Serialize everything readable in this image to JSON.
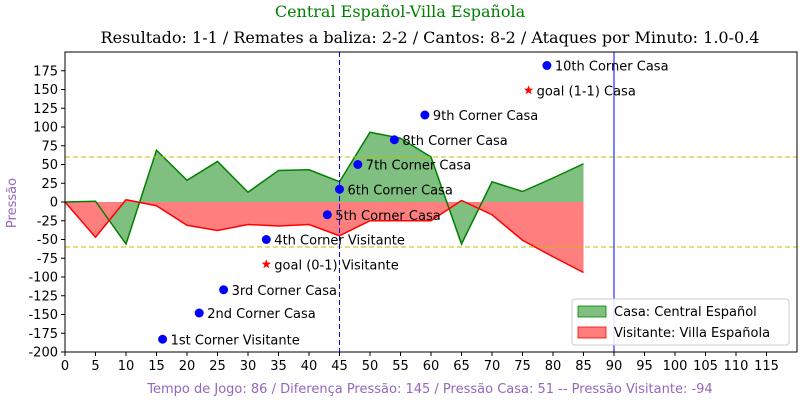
{
  "top_title": "Central Español-Villa Española",
  "chart_data": {
    "type": "area",
    "title": "Resultado: 1-1 / Remates a baliza: 2-2 / Cantos: 8-2 / Ataques por Minuto: 1.0-0.4",
    "xlabel": "Tempo de Jogo: 86 / Diferença Pressão: 145 / Pressão Casa: 51 -- Pressão Visitante: -94",
    "ylabel": "Pressão",
    "xlim": [
      0,
      120
    ],
    "ylim": [
      -200,
      200
    ],
    "x_ticks": [
      0,
      5,
      10,
      15,
      20,
      25,
      30,
      35,
      40,
      45,
      50,
      55,
      60,
      65,
      70,
      75,
      80,
      85,
      90,
      95,
      100,
      105,
      110,
      115
    ],
    "y_ticks": [
      -200,
      -175,
      -150,
      -125,
      -100,
      -75,
      -50,
      -25,
      0,
      25,
      50,
      75,
      100,
      125,
      150,
      175
    ],
    "series": [
      {
        "name": "Casa: Central Español",
        "color": "#008000",
        "fill": "#7fbf7f",
        "x": [
          0,
          5,
          10,
          15,
          20,
          25,
          30,
          35,
          40,
          45,
          50,
          55,
          60,
          65,
          70,
          75,
          80,
          85
        ],
        "values": [
          0,
          1,
          -56,
          69,
          29,
          54,
          13,
          42,
          43,
          27,
          93,
          85,
          60,
          -56,
          27,
          14,
          32,
          51
        ]
      },
      {
        "name": "Visitante: Villa Española",
        "color": "#ff0000",
        "fill": "#ff7f7f",
        "x": [
          0,
          5,
          10,
          15,
          20,
          25,
          30,
          35,
          40,
          45,
          50,
          55,
          60,
          65,
          70,
          75,
          80,
          85
        ],
        "values": [
          0,
          -47,
          3,
          -5,
          -31,
          -38,
          -30,
          -32,
          -30,
          -45,
          -25,
          -25,
          -25,
          2,
          -17,
          -51,
          -73,
          -94
        ]
      }
    ],
    "hlines": [
      {
        "y": 60,
        "color": "#bfbf00",
        "style": "dashed"
      },
      {
        "y": -60,
        "color": "#bfbf00",
        "style": "dashed"
      }
    ],
    "vlines": [
      {
        "x": 45,
        "color": "#0000ff",
        "style": "dashed"
      },
      {
        "x": 90,
        "color": "#0000ff",
        "style": "solid"
      }
    ],
    "annotations": [
      {
        "x": 16,
        "y": -183,
        "marker": "circle",
        "color": "#0000ff",
        "label": "1st Corner Visitante"
      },
      {
        "x": 22,
        "y": -148,
        "marker": "circle",
        "color": "#0000ff",
        "label": "2nd Corner Casa"
      },
      {
        "x": 26,
        "y": -117,
        "marker": "circle",
        "color": "#0000ff",
        "label": "3rd Corner Casa"
      },
      {
        "x": 33,
        "y": -50,
        "marker": "circle",
        "color": "#0000ff",
        "label": "4th Corner Visitante"
      },
      {
        "x": 43,
        "y": -17,
        "marker": "circle",
        "color": "#0000ff",
        "label": "5th Corner Casa"
      },
      {
        "x": 45,
        "y": 17,
        "marker": "circle",
        "color": "#0000ff",
        "label": "6th Corner Casa"
      },
      {
        "x": 48,
        "y": 50,
        "marker": "circle",
        "color": "#0000ff",
        "label": "7th Corner Casa"
      },
      {
        "x": 54,
        "y": 83,
        "marker": "circle",
        "color": "#0000ff",
        "label": "8th Corner Casa"
      },
      {
        "x": 59,
        "y": 116,
        "marker": "circle",
        "color": "#0000ff",
        "label": "9th Corner Casa"
      },
      {
        "x": 79,
        "y": 182,
        "marker": "circle",
        "color": "#0000ff",
        "label": "10th Corner Casa"
      },
      {
        "x": 33,
        "y": -83,
        "marker": "star",
        "color": "#ff0000",
        "label": "goal (0-1) Visitante"
      },
      {
        "x": 76,
        "y": 149,
        "marker": "star",
        "color": "#ff0000",
        "label": "goal (1-1) Casa"
      }
    ],
    "legend": {
      "placement": "lower-right",
      "entries": [
        "Casa: Central Español",
        "Visitante: Villa Española"
      ]
    },
    "grid": false
  },
  "colors": {
    "top_title": "#008000",
    "axis_label": "#9467bd"
  }
}
